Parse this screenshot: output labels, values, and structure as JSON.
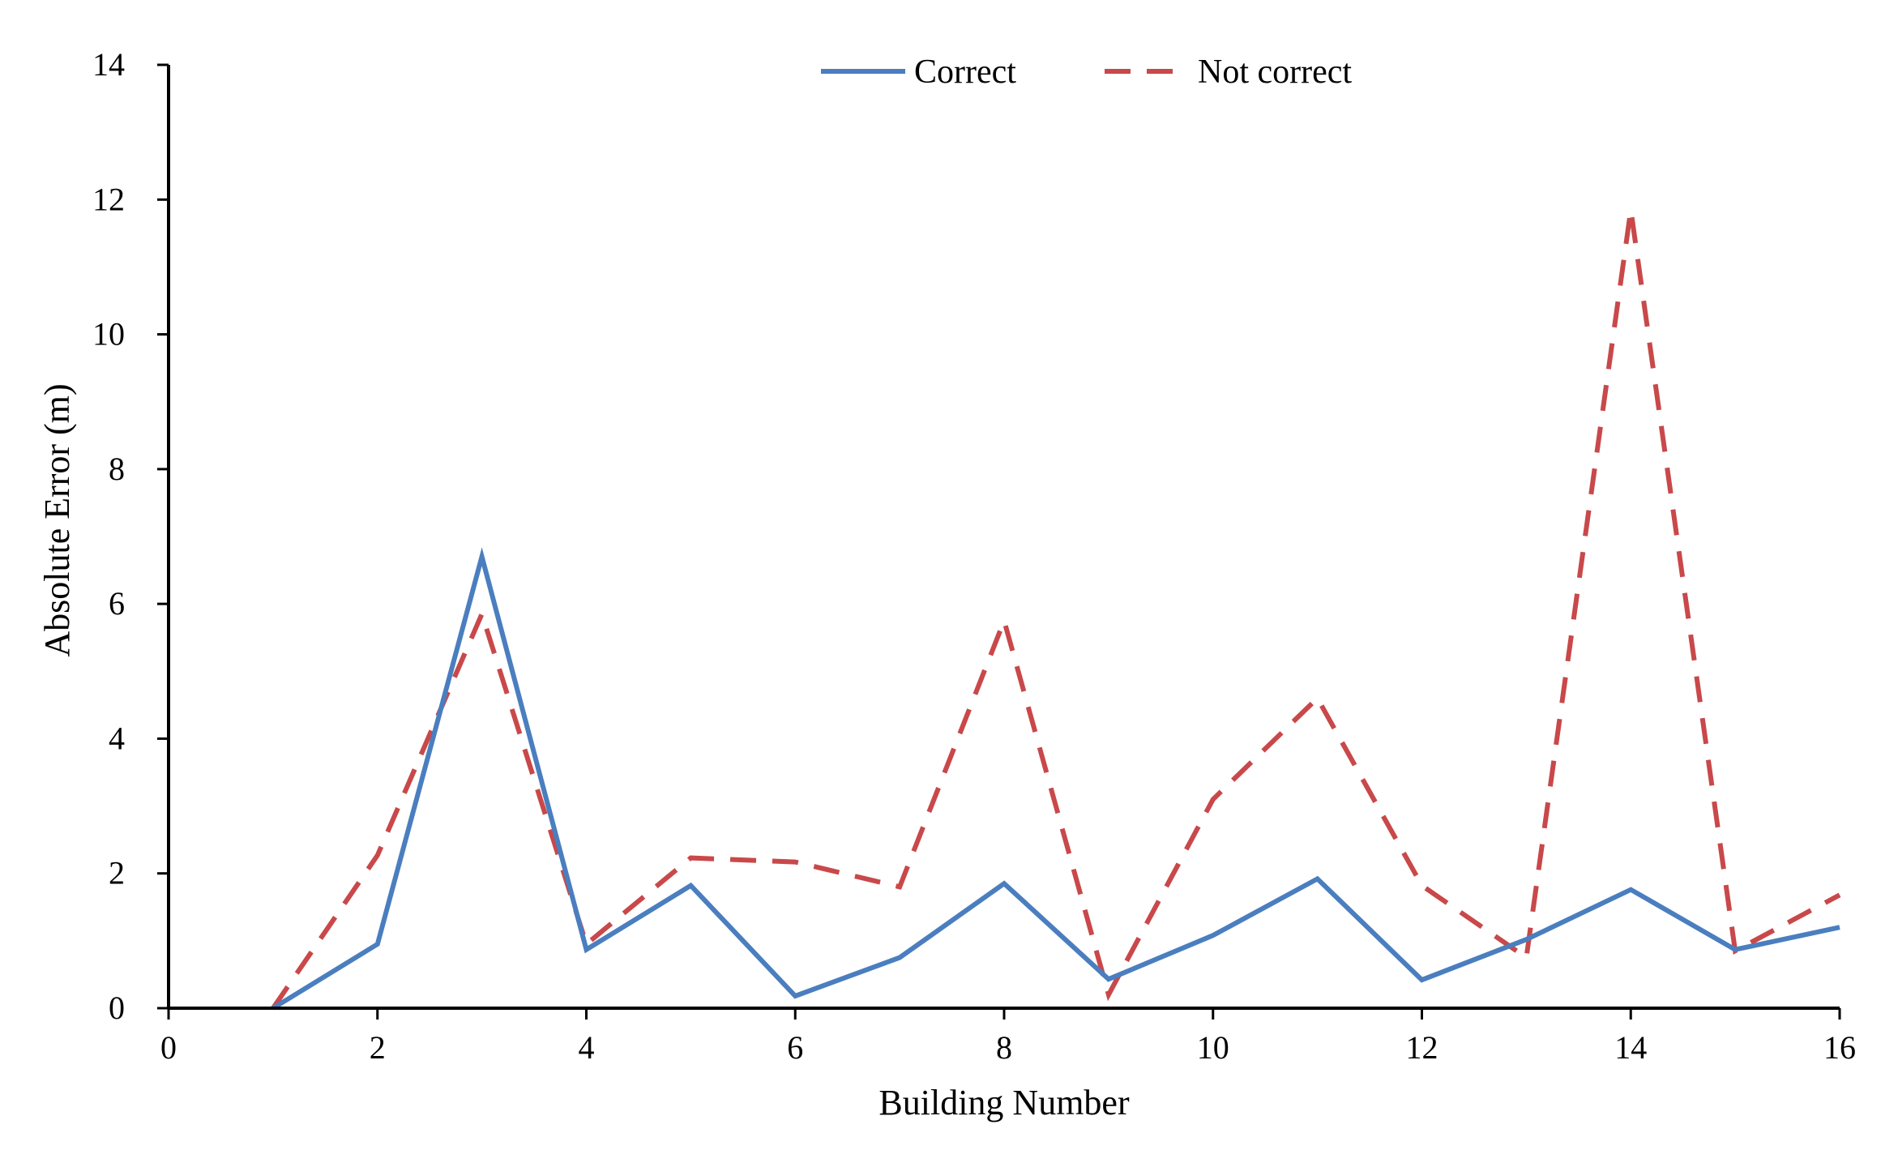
{
  "chart_data": {
    "type": "line",
    "title": "",
    "xlabel": "Building Number",
    "ylabel": "Absolute Error (m)",
    "xlim": [
      0,
      16
    ],
    "ylim": [
      0,
      14
    ],
    "x_ticks": [
      0,
      2,
      4,
      6,
      8,
      10,
      12,
      14,
      16
    ],
    "y_ticks": [
      0,
      2,
      4,
      6,
      8,
      10,
      12,
      14
    ],
    "grid": false,
    "legend_position": "top-center",
    "x": [
      1,
      2,
      3,
      4,
      5,
      6,
      7,
      8,
      9,
      10,
      11,
      12,
      13,
      14,
      15,
      16
    ],
    "series": [
      {
        "name": "Correct",
        "style": "solid",
        "color": "#4a7ebf",
        "values": [
          0.0,
          0.95,
          6.7,
          0.87,
          1.82,
          0.18,
          0.75,
          1.85,
          0.43,
          1.08,
          1.92,
          0.42,
          1.02,
          1.76,
          0.87,
          1.2
        ]
      },
      {
        "name": "Not correct",
        "style": "dashed",
        "color": "#c9484a",
        "values": [
          0.0,
          2.27,
          5.85,
          0.95,
          2.23,
          2.17,
          1.8,
          5.75,
          0.2,
          3.1,
          4.6,
          1.82,
          0.75,
          11.85,
          0.85,
          1.68
        ]
      }
    ]
  }
}
